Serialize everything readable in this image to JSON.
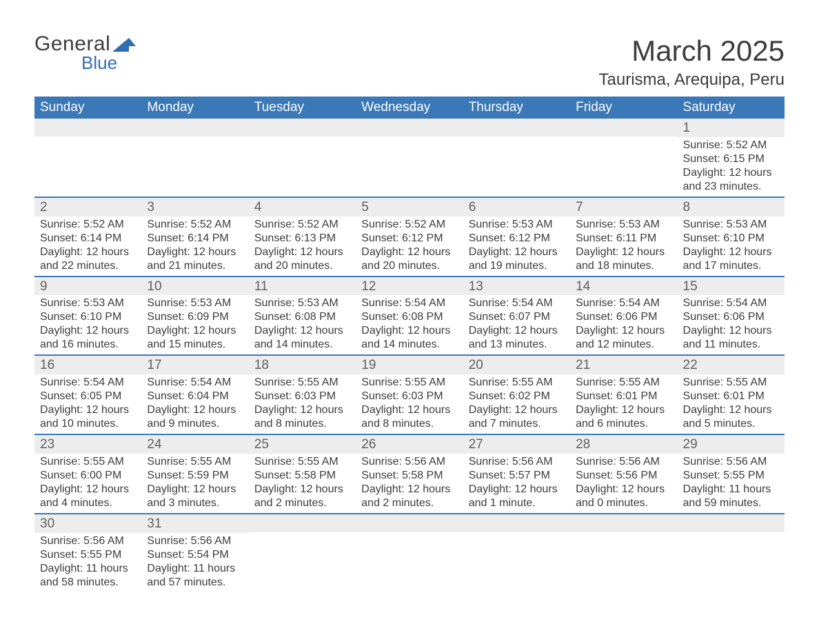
{
  "logo": {
    "general": "General",
    "blue": "Blue",
    "text_color": "#3c3c3c",
    "accent_color": "#2f6eb0"
  },
  "title": "March 2025",
  "location": "Taurisma, Arequipa, Peru",
  "header_bg": "#3b78b8",
  "header_text_color": "#ffffff",
  "daynum_bg": "#ededed",
  "page_bg": "#ffffff",
  "weekdays": [
    "Sunday",
    "Monday",
    "Tuesday",
    "Wednesday",
    "Thursday",
    "Friday",
    "Saturday"
  ],
  "weeks": [
    [
      null,
      null,
      null,
      null,
      null,
      null,
      {
        "n": "1",
        "sunrise": "5:52 AM",
        "sunset": "6:15 PM",
        "daylight": "12 hours and 23 minutes."
      }
    ],
    [
      {
        "n": "2",
        "sunrise": "5:52 AM",
        "sunset": "6:14 PM",
        "daylight": "12 hours and 22 minutes."
      },
      {
        "n": "3",
        "sunrise": "5:52 AM",
        "sunset": "6:14 PM",
        "daylight": "12 hours and 21 minutes."
      },
      {
        "n": "4",
        "sunrise": "5:52 AM",
        "sunset": "6:13 PM",
        "daylight": "12 hours and 20 minutes."
      },
      {
        "n": "5",
        "sunrise": "5:52 AM",
        "sunset": "6:12 PM",
        "daylight": "12 hours and 20 minutes."
      },
      {
        "n": "6",
        "sunrise": "5:53 AM",
        "sunset": "6:12 PM",
        "daylight": "12 hours and 19 minutes."
      },
      {
        "n": "7",
        "sunrise": "5:53 AM",
        "sunset": "6:11 PM",
        "daylight": "12 hours and 18 minutes."
      },
      {
        "n": "8",
        "sunrise": "5:53 AM",
        "sunset": "6:10 PM",
        "daylight": "12 hours and 17 minutes."
      }
    ],
    [
      {
        "n": "9",
        "sunrise": "5:53 AM",
        "sunset": "6:10 PM",
        "daylight": "12 hours and 16 minutes."
      },
      {
        "n": "10",
        "sunrise": "5:53 AM",
        "sunset": "6:09 PM",
        "daylight": "12 hours and 15 minutes."
      },
      {
        "n": "11",
        "sunrise": "5:53 AM",
        "sunset": "6:08 PM",
        "daylight": "12 hours and 14 minutes."
      },
      {
        "n": "12",
        "sunrise": "5:54 AM",
        "sunset": "6:08 PM",
        "daylight": "12 hours and 14 minutes."
      },
      {
        "n": "13",
        "sunrise": "5:54 AM",
        "sunset": "6:07 PM",
        "daylight": "12 hours and 13 minutes."
      },
      {
        "n": "14",
        "sunrise": "5:54 AM",
        "sunset": "6:06 PM",
        "daylight": "12 hours and 12 minutes."
      },
      {
        "n": "15",
        "sunrise": "5:54 AM",
        "sunset": "6:06 PM",
        "daylight": "12 hours and 11 minutes."
      }
    ],
    [
      {
        "n": "16",
        "sunrise": "5:54 AM",
        "sunset": "6:05 PM",
        "daylight": "12 hours and 10 minutes."
      },
      {
        "n": "17",
        "sunrise": "5:54 AM",
        "sunset": "6:04 PM",
        "daylight": "12 hours and 9 minutes."
      },
      {
        "n": "18",
        "sunrise": "5:55 AM",
        "sunset": "6:03 PM",
        "daylight": "12 hours and 8 minutes."
      },
      {
        "n": "19",
        "sunrise": "5:55 AM",
        "sunset": "6:03 PM",
        "daylight": "12 hours and 8 minutes."
      },
      {
        "n": "20",
        "sunrise": "5:55 AM",
        "sunset": "6:02 PM",
        "daylight": "12 hours and 7 minutes."
      },
      {
        "n": "21",
        "sunrise": "5:55 AM",
        "sunset": "6:01 PM",
        "daylight": "12 hours and 6 minutes."
      },
      {
        "n": "22",
        "sunrise": "5:55 AM",
        "sunset": "6:01 PM",
        "daylight": "12 hours and 5 minutes."
      }
    ],
    [
      {
        "n": "23",
        "sunrise": "5:55 AM",
        "sunset": "6:00 PM",
        "daylight": "12 hours and 4 minutes."
      },
      {
        "n": "24",
        "sunrise": "5:55 AM",
        "sunset": "5:59 PM",
        "daylight": "12 hours and 3 minutes."
      },
      {
        "n": "25",
        "sunrise": "5:55 AM",
        "sunset": "5:58 PM",
        "daylight": "12 hours and 2 minutes."
      },
      {
        "n": "26",
        "sunrise": "5:56 AM",
        "sunset": "5:58 PM",
        "daylight": "12 hours and 2 minutes."
      },
      {
        "n": "27",
        "sunrise": "5:56 AM",
        "sunset": "5:57 PM",
        "daylight": "12 hours and 1 minute."
      },
      {
        "n": "28",
        "sunrise": "5:56 AM",
        "sunset": "5:56 PM",
        "daylight": "12 hours and 0 minutes."
      },
      {
        "n": "29",
        "sunrise": "5:56 AM",
        "sunset": "5:55 PM",
        "daylight": "11 hours and 59 minutes."
      }
    ],
    [
      {
        "n": "30",
        "sunrise": "5:56 AM",
        "sunset": "5:55 PM",
        "daylight": "11 hours and 58 minutes."
      },
      {
        "n": "31",
        "sunrise": "5:56 AM",
        "sunset": "5:54 PM",
        "daylight": "11 hours and 57 minutes."
      },
      null,
      null,
      null,
      null,
      null
    ]
  ],
  "labels": {
    "sunrise": "Sunrise:",
    "sunset": "Sunset:",
    "daylight": "Daylight:"
  }
}
